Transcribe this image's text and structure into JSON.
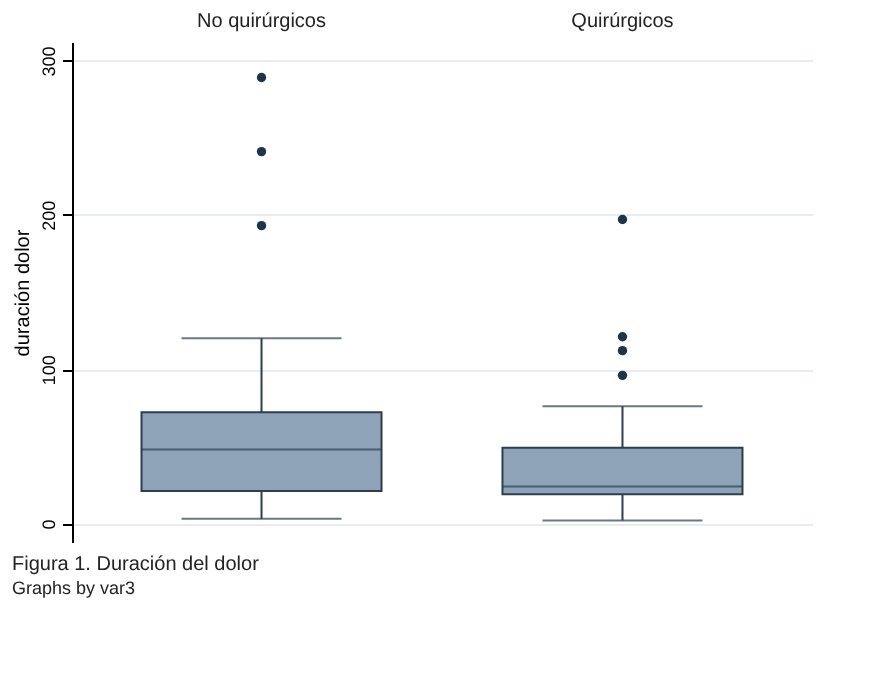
{
  "chart_data": {
    "type": "box",
    "title": "Figura 1. Duración del dolor",
    "ylabel": "duración dolor",
    "annotations": [
      "Graphs by var3"
    ],
    "categories": [
      "No quirúrgicos",
      "Quirúrgicos"
    ],
    "boxes": [
      {
        "low": 3,
        "q1": 21,
        "median": 48,
        "q3": 72,
        "high": 120,
        "outliers": [
          193,
          241,
          289
        ]
      },
      {
        "low": 2,
        "q1": 19,
        "median": 24,
        "q3": 49,
        "high": 76,
        "outliers": [
          96,
          112,
          121,
          197
        ]
      }
    ],
    "color": "#8ea3b8",
    "ylim": [
      -12,
      312
    ],
    "yticks": [
      0,
      100,
      200,
      300
    ],
    "grid": "y"
  }
}
